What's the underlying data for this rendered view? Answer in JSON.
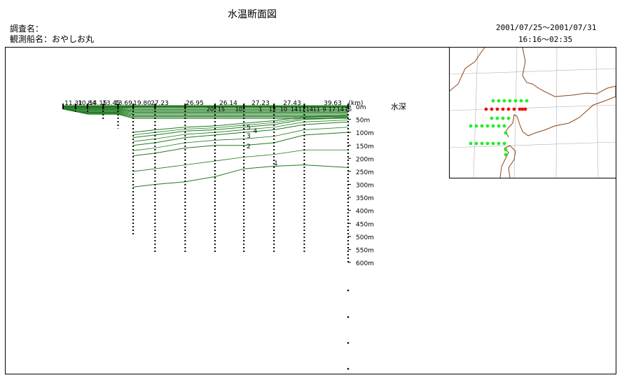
{
  "header": {
    "title": "水温断面図",
    "survey_label": "調査名：",
    "ship_label": "観測船名：おやしお丸",
    "date_range": "2001/07/25～2001/07/31",
    "time_range": "16:16～02:35"
  },
  "colors": {
    "contour": "#1e7a1e",
    "station": "#000000",
    "map_coast": "#8b4513",
    "map_grid": "#b0b0b0",
    "map_station_green": "#22ee22",
    "map_station_red": "#ee1111"
  },
  "chart_data": {
    "type": "contour-section",
    "depth_axis_label": "水深",
    "distance_unit_label": "(km)",
    "depth_ticks": [
      "0m",
      "50m",
      "100m",
      "150m",
      "200m",
      "250m",
      "300m",
      "350m",
      "400m",
      "450m",
      "500m",
      "550m",
      "600m"
    ],
    "depth_tick_values": [
      0,
      50,
      100,
      150,
      200,
      250,
      300,
      350,
      400,
      450,
      500,
      550,
      600
    ],
    "distance_labels": [
      "11.31",
      "10.84",
      "14.15",
      "13.45",
      "13.69",
      "19.80",
      "27.23",
      "26.95",
      "26.14",
      "27.23",
      "27.43",
      "39.63"
    ],
    "stations": [
      {
        "distance_km": 0,
        "max_depth_m": 10
      },
      {
        "distance_km": 11.31,
        "max_depth_m": 20
      },
      {
        "distance_km": 22.15,
        "max_depth_m": 30
      },
      {
        "distance_km": 36.3,
        "max_depth_m": 50
      },
      {
        "distance_km": 49.75,
        "max_depth_m": 85
      },
      {
        "distance_km": 63.44,
        "max_depth_m": 500
      },
      {
        "distance_km": 83.24,
        "max_depth_m": 560
      },
      {
        "distance_km": 110.47,
        "max_depth_m": 560
      },
      {
        "distance_km": 137.42,
        "max_depth_m": 560
      },
      {
        "distance_km": 163.56,
        "max_depth_m": 560
      },
      {
        "distance_km": 190.79,
        "max_depth_m": 560
      },
      {
        "distance_km": 218.22,
        "max_depth_m": 560
      },
      {
        "distance_km": 257.85,
        "max_depth_m": 1000
      }
    ],
    "contour_labels": [
      "20",
      "15",
      "10",
      "1",
      "12",
      "10",
      "14",
      "11",
      "14",
      "11",
      "9",
      "17",
      "14",
      "16",
      "5",
      "4",
      "3",
      "2",
      "1"
    ],
    "contours": [
      {
        "temp": 1,
        "points": [
          [
            63.44,
            310
          ],
          [
            83.24,
            300
          ],
          [
            110.47,
            290
          ],
          [
            137.42,
            270
          ],
          [
            163.56,
            240
          ],
          [
            190.79,
            230
          ],
          [
            218.22,
            225
          ],
          [
            257.85,
            235
          ]
        ]
      },
      {
        "temp": 2,
        "points": [
          [
            63.44,
            190
          ],
          [
            83.24,
            180
          ],
          [
            110.47,
            160
          ],
          [
            137.42,
            150
          ],
          [
            163.56,
            150
          ],
          [
            190.79,
            140
          ],
          [
            218.22,
            110
          ],
          [
            257.85,
            100
          ]
        ]
      },
      {
        "temp": 3,
        "points": [
          [
            63.44,
            150
          ],
          [
            83.24,
            140
          ],
          [
            110.47,
            120
          ],
          [
            137.42,
            110
          ],
          [
            163.56,
            100
          ],
          [
            190.79,
            90
          ],
          [
            218.22,
            70
          ],
          [
            257.85,
            60
          ]
        ]
      },
      {
        "temp": 4,
        "points": [
          [
            63.44,
            120
          ],
          [
            83.24,
            110
          ],
          [
            110.47,
            95
          ],
          [
            137.42,
            90
          ],
          [
            163.56,
            80
          ],
          [
            190.79,
            70
          ],
          [
            218.22,
            50
          ],
          [
            257.85,
            45
          ]
        ]
      },
      {
        "temp": 5,
        "points": [
          [
            63.44,
            100
          ],
          [
            83.24,
            90
          ],
          [
            110.47,
            80
          ],
          [
            137.42,
            75
          ],
          [
            163.56,
            65
          ],
          [
            190.79,
            55
          ],
          [
            218.22,
            40
          ],
          [
            257.85,
            35
          ]
        ]
      }
    ]
  },
  "map": {
    "labels": []
  }
}
